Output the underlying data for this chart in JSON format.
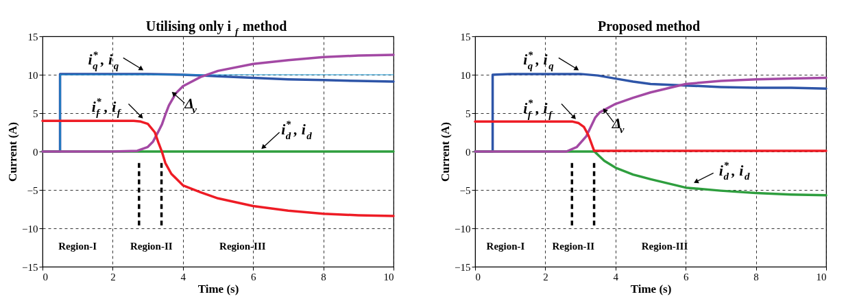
{
  "chart_data": [
    {
      "type": "line",
      "title": "Utilising only i$_{f}$ method",
      "xlabel": "Time (s)",
      "ylabel": "Current (A)",
      "xlim": [
        0,
        10
      ],
      "ylim": [
        -15,
        15
      ],
      "xticks": [
        0,
        2,
        4,
        6,
        8,
        10
      ],
      "yticks": [
        -15,
        -10,
        -5,
        0,
        5,
        10,
        15
      ],
      "grid": true,
      "series": [
        {
          "name": "i$^{*}$$_{q}$, i$_{q}$",
          "color": "#2e55a8",
          "x": [
            0,
            0.5,
            0.5,
            1,
            2,
            3,
            4,
            4.5,
            5,
            6,
            7,
            8,
            9,
            10
          ],
          "values": [
            0,
            0,
            10.1,
            10.1,
            10.1,
            10.1,
            10,
            9.9,
            9.8,
            9.6,
            9.4,
            9.3,
            9.2,
            9.1
          ]
        },
        {
          "color": "#1a9ad6",
          "x": [
            0,
            0.5,
            0.5,
            10
          ],
          "values": [
            0,
            0,
            10,
            10
          ]
        },
        {
          "name": "i$^{*}$$_{d}$, i$_{d}$",
          "color": "#2e9e3e",
          "x": [
            0,
            10
          ],
          "values": [
            0,
            0
          ]
        },
        {
          "name": "Δ$_{v}$",
          "color": "#a349a4",
          "x": [
            0,
            2,
            2.7,
            3,
            3.15,
            3.3,
            3.4,
            3.5,
            3.6,
            3.8,
            4,
            4.5,
            5,
            6,
            7,
            8,
            9,
            10
          ],
          "values": [
            0,
            0,
            0.1,
            0.6,
            1.3,
            2.6,
            3.5,
            4.8,
            6,
            7.6,
            8.5,
            9.7,
            10.5,
            11.4,
            11.9,
            12.3,
            12.5,
            12.6
          ]
        },
        {
          "name": "i$^{*}$$_{f}$, i$_{f}$",
          "color": "#ee1c25",
          "x": [
            0,
            1,
            2,
            2.6,
            2.8,
            3,
            3.2,
            3.3,
            3.4,
            3.5,
            3.67,
            4,
            4.5,
            5,
            6,
            7,
            8,
            9,
            10
          ],
          "values": [
            4,
            4,
            4,
            4,
            3.9,
            3.6,
            2.5,
            1.2,
            0,
            -1.5,
            -2.9,
            -4.4,
            -5.3,
            -6.1,
            -7.1,
            -7.7,
            -8.1,
            -8.3,
            -8.4
          ]
        }
      ],
      "ref_lines": [
        {
          "axis": "x",
          "value": 2.75,
          "color": "#000000",
          "line_style": "dashed"
        },
        {
          "axis": "x",
          "value": 3.39,
          "color": "#000000",
          "line_style": "dashed"
        }
      ],
      "annotations": [
        "Region-I",
        "Region-II",
        "Region-III"
      ]
    },
    {
      "type": "line",
      "title": "Proposed method",
      "xlabel": "Time (s)",
      "ylabel": "Current (A)",
      "xlim": [
        0,
        10
      ],
      "ylim": [
        -15,
        15
      ],
      "xticks": [
        0,
        2,
        4,
        6,
        8,
        10
      ],
      "yticks": [
        -15,
        -10,
        -5,
        0,
        5,
        10,
        15
      ],
      "grid": true,
      "series": [
        {
          "name": "i$^{*}$$_{q}$, i$_{q}$",
          "color": "#2e55a8",
          "x": [
            0,
            0.5,
            0.5,
            1,
            2,
            3,
            3.5,
            4,
            4.5,
            5,
            6,
            7,
            8,
            9,
            10
          ],
          "values": [
            0,
            0,
            10,
            10.1,
            10.1,
            10.1,
            9.9,
            9.5,
            9.1,
            8.8,
            8.6,
            8.4,
            8.3,
            8.3,
            8.2
          ]
        },
        {
          "name": "i$^{*}$$_{d}$, i$_{d}$",
          "color": "#2e9e3e",
          "x": [
            0,
            3,
            3.4,
            3.68,
            4,
            4.5,
            5,
            6,
            7,
            8,
            9,
            10
          ],
          "values": [
            0,
            0,
            0,
            -1.2,
            -2.1,
            -3,
            -3.6,
            -4.7,
            -5.1,
            -5.4,
            -5.6,
            -5.7
          ]
        },
        {
          "name": "Δ$_{v}$",
          "color": "#a349a4",
          "x": [
            0,
            2,
            2.6,
            2.9,
            3.17,
            3.42,
            3.55,
            4,
            4.5,
            5,
            6,
            7,
            8,
            9,
            10
          ],
          "values": [
            0,
            0,
            0,
            0.6,
            2,
            4.4,
            5.1,
            6.2,
            7,
            7.7,
            8.8,
            9.2,
            9.4,
            9.5,
            9.6
          ]
        },
        {
          "name": "i$^{*}$$_{f}$, i$_{f}$",
          "color": "#ee1c25",
          "x": [
            0,
            1,
            2,
            2.78,
            2.95,
            3.1,
            3.23,
            3.39,
            3.5,
            4,
            6,
            8,
            10
          ],
          "values": [
            3.9,
            3.9,
            3.9,
            3.9,
            3.7,
            3.2,
            2.1,
            0.1,
            0.1,
            0.1,
            0.1,
            0.1,
            0.1
          ]
        }
      ],
      "ref_lines": [
        {
          "axis": "x",
          "value": 2.76,
          "color": "#000000",
          "line_style": "dashed"
        },
        {
          "axis": "x",
          "value": 3.39,
          "color": "#000000",
          "line_style": "dashed"
        }
      ],
      "annotations": [
        "Region-I",
        "Region-II",
        "Region-III"
      ]
    }
  ]
}
